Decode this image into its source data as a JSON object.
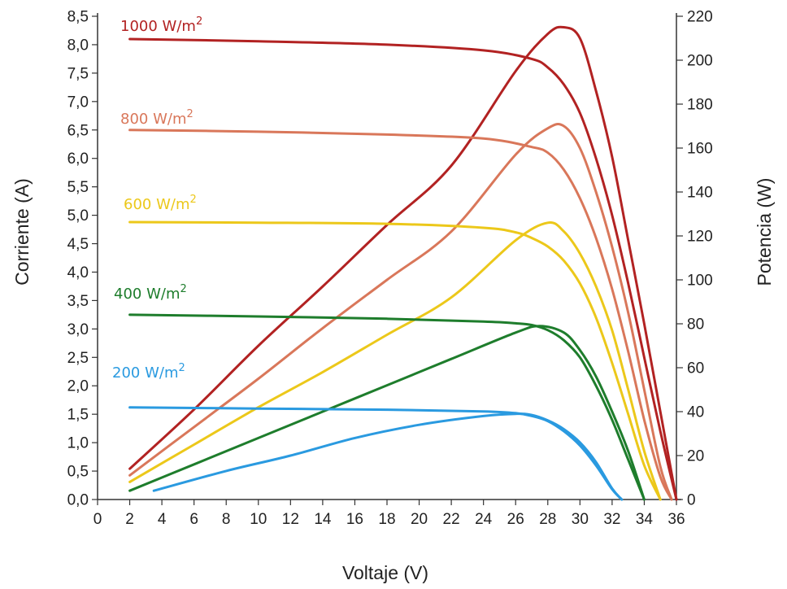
{
  "chart_data": {
    "type": "line",
    "xlabel": "Voltaje (V)",
    "ylabel": "Corriente (A)",
    "y2label": "Potencia (W)",
    "xlim": [
      0,
      36
    ],
    "ylim": [
      0,
      8.5
    ],
    "y2lim": [
      0,
      220
    ],
    "x_ticks": [
      "0",
      "2",
      "4",
      "6",
      "8",
      "10",
      "12",
      "14",
      "16",
      "18",
      "20",
      "22",
      "24",
      "26",
      "28",
      "30",
      "32",
      "34",
      "36"
    ],
    "y_ticks": [
      "0,0",
      "0,5",
      "1,0",
      "1,5",
      "2,0",
      "2,5",
      "3,0",
      "3,5",
      "4,0",
      "4,5",
      "5,0",
      "5,5",
      "6,0",
      "6,5",
      "7,0",
      "7,5",
      "8,0",
      "8,5"
    ],
    "y2_ticks": [
      "0",
      "20",
      "40",
      "60",
      "80",
      "100",
      "120",
      "140",
      "160",
      "180",
      "200",
      "220"
    ],
    "grid": false,
    "series": [
      {
        "name": "1000 W/m²",
        "label_main": "1000 W/m",
        "label_sup": "2",
        "color": "#b22222",
        "current_curve": {
          "x": [
            2,
            10,
            18,
            24,
            27,
            28,
            29,
            30,
            31,
            32,
            33,
            34,
            35,
            36
          ],
          "y": [
            8.1,
            8.06,
            8.0,
            7.9,
            7.75,
            7.6,
            7.3,
            6.8,
            6.0,
            5.0,
            3.8,
            2.5,
            1.2,
            0.0
          ]
        },
        "power_curve": {
          "x": [
            2,
            6,
            10,
            14,
            18,
            22,
            26,
            28,
            29,
            30,
            31,
            32,
            33,
            34,
            35,
            36
          ],
          "y": [
            14,
            41,
            70,
            97,
            125,
            152,
            195,
            212,
            215,
            210,
            186,
            156,
            118,
            80,
            40,
            0
          ]
        }
      },
      {
        "name": "800 W/m²",
        "label_main": "800 W/m",
        "label_sup": "2",
        "color": "#d9775a",
        "current_curve": {
          "x": [
            2,
            10,
            18,
            24,
            27,
            28,
            29,
            30,
            31,
            32,
            33,
            34,
            35,
            35.7
          ],
          "y": [
            6.5,
            6.47,
            6.42,
            6.35,
            6.2,
            6.1,
            5.8,
            5.3,
            4.6,
            3.7,
            2.6,
            1.4,
            0.4,
            0.0
          ]
        },
        "power_curve": {
          "x": [
            2,
            6,
            10,
            14,
            18,
            22,
            26,
            28,
            29,
            30,
            31,
            32,
            33,
            34,
            35,
            35.7
          ],
          "y": [
            11,
            33,
            55,
            78,
            100,
            122,
            157,
            169,
            170,
            160,
            140,
            115,
            85,
            50,
            15,
            0
          ]
        }
      },
      {
        "name": "600 W/m²",
        "label_main": "600 W/m",
        "label_sup": "2",
        "color": "#ecc81a",
        "current_curve": {
          "x": [
            2,
            10,
            18,
            24,
            26,
            27,
            28,
            29,
            30,
            31,
            32,
            33,
            34,
            35
          ],
          "y": [
            4.88,
            4.87,
            4.85,
            4.78,
            4.7,
            4.6,
            4.45,
            4.2,
            3.8,
            3.2,
            2.4,
            1.5,
            0.6,
            0.0
          ]
        },
        "power_curve": {
          "x": [
            2,
            6,
            10,
            14,
            18,
            22,
            26,
            28,
            29,
            30,
            31,
            32,
            33,
            34,
            35
          ],
          "y": [
            8,
            25,
            42,
            58,
            75,
            92,
            118,
            126,
            122,
            112,
            97,
            77,
            50,
            22,
            0
          ]
        }
      },
      {
        "name": "400 W/m²",
        "label_main": "400 W/m",
        "label_sup": "2",
        "color": "#1e7d2c",
        "current_curve": {
          "x": [
            2,
            10,
            18,
            24,
            26,
            27,
            28,
            29,
            30,
            31,
            32,
            33,
            34
          ],
          "y": [
            3.25,
            3.22,
            3.18,
            3.13,
            3.1,
            3.07,
            2.98,
            2.8,
            2.5,
            2.0,
            1.4,
            0.7,
            0.0
          ]
        },
        "power_curve": {
          "x": [
            2,
            6,
            10,
            14,
            18,
            22,
            26,
            27.5,
            29,
            30,
            31,
            32,
            33,
            34
          ],
          "y": [
            4,
            16,
            28,
            40,
            52,
            64,
            76,
            79,
            76,
            68,
            56,
            40,
            22,
            0
          ]
        }
      },
      {
        "name": "200 W/m²",
        "label_main": "200 W/m",
        "label_sup": "2",
        "color": "#2a9ae0",
        "current_curve": {
          "x": [
            2,
            10,
            18,
            24,
            26,
            27,
            28,
            29,
            30,
            31,
            32,
            32.6
          ],
          "y": [
            1.62,
            1.6,
            1.58,
            1.55,
            1.52,
            1.47,
            1.38,
            1.2,
            0.95,
            0.6,
            0.18,
            0.0
          ]
        },
        "power_curve": {
          "x": [
            3.5,
            8,
            12,
            16,
            20,
            24,
            26,
            27,
            28,
            29,
            30,
            31,
            32,
            32.6
          ],
          "y": [
            4,
            13,
            20,
            28,
            34,
            38,
            39,
            38.5,
            36,
            32,
            26,
            17,
            5,
            0
          ]
        }
      }
    ]
  }
}
